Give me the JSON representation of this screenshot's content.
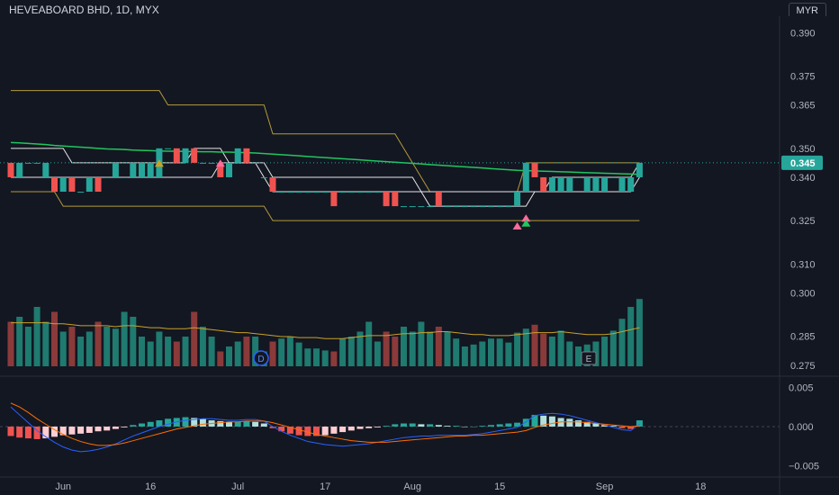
{
  "header": {
    "title": "HEVEABOARD BHD, 1D, MYX",
    "currency": "MYR"
  },
  "colors": {
    "up": "#26a69a",
    "down": "#ef5350",
    "sma": "#22c55e",
    "donchian": "#b59a3a",
    "channel": "#e6e6e6",
    "vol_up": "#1f7a6f",
    "vol_down": "#8b3a3a",
    "vol_ma": "#c9a227",
    "macd": "#2962ff",
    "signal": "#ff6d00",
    "hist_up_strong": "#26a69a",
    "hist_up_weak": "#b2dfdb",
    "hist_down_strong": "#ef5350",
    "hist_down_weak": "#ffcdd2"
  },
  "chart_data": {
    "type": "candlestick",
    "price": {
      "ylim": [
        0.2712,
        0.3957
      ],
      "ticks": [
        "0.390",
        "0.375",
        "0.365",
        "0.350",
        "0.340",
        "0.325",
        "0.310",
        "0.300",
        "0.285",
        "0.275"
      ],
      "last_price": "0.345",
      "candles": [
        {
          "o": 0.345,
          "c": 0.34
        },
        {
          "o": 0.34,
          "c": 0.345
        },
        {
          "o": 0.345,
          "c": 0.345
        },
        {
          "o": 0.345,
          "c": 0.345
        },
        {
          "o": 0.34,
          "c": 0.345
        },
        {
          "o": 0.34,
          "c": 0.335
        },
        {
          "o": 0.335,
          "c": 0.34
        },
        {
          "o": 0.34,
          "c": 0.335
        },
        {
          "o": 0.335,
          "c": 0.335
        },
        {
          "o": 0.335,
          "c": 0.34
        },
        {
          "o": 0.34,
          "c": 0.335
        },
        {
          "o": 0.34,
          "c": 0.34
        },
        {
          "o": 0.34,
          "c": 0.345
        },
        {
          "o": 0.34,
          "c": 0.34
        },
        {
          "o": 0.34,
          "c": 0.345
        },
        {
          "o": 0.34,
          "c": 0.345
        },
        {
          "o": 0.34,
          "c": 0.345
        },
        {
          "o": 0.34,
          "c": 0.35
        },
        {
          "o": 0.35,
          "c": 0.35
        },
        {
          "o": 0.35,
          "c": 0.345
        },
        {
          "o": 0.345,
          "c": 0.35
        },
        {
          "o": 0.35,
          "c": 0.345
        },
        {
          "o": 0.345,
          "c": 0.345
        },
        {
          "o": 0.345,
          "c": 0.345
        },
        {
          "o": 0.345,
          "c": 0.34
        },
        {
          "o": 0.34,
          "c": 0.345
        },
        {
          "o": 0.345,
          "c": 0.35
        },
        {
          "o": 0.35,
          "c": 0.345
        },
        {
          "o": 0.345,
          "c": 0.345
        },
        {
          "o": 0.34,
          "c": 0.34
        },
        {
          "o": 0.34,
          "c": 0.335
        },
        {
          "o": 0.335,
          "c": 0.335
        },
        {
          "o": 0.335,
          "c": 0.335
        },
        {
          "o": 0.335,
          "c": 0.335
        },
        {
          "o": 0.335,
          "c": 0.335
        },
        {
          "o": 0.335,
          "c": 0.335
        },
        {
          "o": 0.335,
          "c": 0.335
        },
        {
          "o": 0.335,
          "c": 0.33
        },
        {
          "o": 0.335,
          "c": 0.335
        },
        {
          "o": 0.335,
          "c": 0.335
        },
        {
          "o": 0.335,
          "c": 0.335
        },
        {
          "o": 0.335,
          "c": 0.335
        },
        {
          "o": 0.335,
          "c": 0.335
        },
        {
          "o": 0.335,
          "c": 0.33
        },
        {
          "o": 0.335,
          "c": 0.33
        },
        {
          "o": 0.33,
          "c": 0.33
        },
        {
          "o": 0.33,
          "c": 0.33
        },
        {
          "o": 0.33,
          "c": 0.33
        },
        {
          "o": 0.33,
          "c": 0.33
        },
        {
          "o": 0.335,
          "c": 0.33
        },
        {
          "o": 0.33,
          "c": 0.33
        },
        {
          "o": 0.33,
          "c": 0.33
        },
        {
          "o": 0.33,
          "c": 0.33
        },
        {
          "o": 0.33,
          "c": 0.33
        },
        {
          "o": 0.33,
          "c": 0.33
        },
        {
          "o": 0.33,
          "c": 0.33
        },
        {
          "o": 0.33,
          "c": 0.33
        },
        {
          "o": 0.33,
          "c": 0.33
        },
        {
          "o": 0.33,
          "c": 0.335
        },
        {
          "o": 0.335,
          "c": 0.345
        },
        {
          "o": 0.345,
          "c": 0.34
        },
        {
          "o": 0.34,
          "c": 0.335
        },
        {
          "o": 0.335,
          "c": 0.34
        },
        {
          "o": 0.335,
          "c": 0.34
        },
        {
          "o": 0.335,
          "c": 0.34
        },
        {
          "o": 0.34,
          "c": 0.34
        },
        {
          "o": 0.335,
          "c": 0.34
        },
        {
          "o": 0.335,
          "c": 0.34
        },
        {
          "o": 0.335,
          "c": 0.34
        },
        {
          "o": 0.34,
          "c": 0.34
        },
        {
          "o": 0.335,
          "c": 0.34
        },
        {
          "o": 0.335,
          "c": 0.34
        },
        {
          "o": 0.34,
          "c": 0.345
        }
      ],
      "sma": [
        0.352,
        0.3519,
        0.3517,
        0.3515,
        0.3513,
        0.351,
        0.3508,
        0.3506,
        0.3504,
        0.3502,
        0.35,
        0.3498,
        0.3497,
        0.3496,
        0.3494,
        0.3493,
        0.3492,
        0.3491,
        0.349,
        0.349,
        0.3489,
        0.3489,
        0.3488,
        0.3488,
        0.3487,
        0.3487,
        0.3486,
        0.3485,
        0.3484,
        0.3482,
        0.348,
        0.3478,
        0.3476,
        0.3474,
        0.3472,
        0.347,
        0.3468,
        0.3466,
        0.3464,
        0.3462,
        0.346,
        0.3458,
        0.3456,
        0.3454,
        0.3452,
        0.345,
        0.3448,
        0.3446,
        0.3444,
        0.3442,
        0.344,
        0.3438,
        0.3436,
        0.3434,
        0.3432,
        0.343,
        0.3428,
        0.3426,
        0.3424,
        0.3423,
        0.3422,
        0.3421,
        0.342,
        0.3419,
        0.3418,
        0.3417,
        0.3416,
        0.3415,
        0.3414,
        0.3413,
        0.3412,
        0.3411,
        0.341
      ],
      "don_upper": [
        0.37,
        0.37,
        0.37,
        0.37,
        0.37,
        0.37,
        0.37,
        0.37,
        0.37,
        0.37,
        0.37,
        0.37,
        0.37,
        0.37,
        0.37,
        0.37,
        0.37,
        0.37,
        0.365,
        0.365,
        0.365,
        0.365,
        0.365,
        0.365,
        0.365,
        0.365,
        0.365,
        0.365,
        0.365,
        0.365,
        0.355,
        0.355,
        0.355,
        0.355,
        0.355,
        0.355,
        0.355,
        0.355,
        0.355,
        0.355,
        0.355,
        0.355,
        0.355,
        0.355,
        0.355,
        0.35,
        0.345,
        0.34,
        0.335,
        0.335,
        0.335,
        0.335,
        0.335,
        0.335,
        0.335,
        0.335,
        0.335,
        0.335,
        0.335,
        0.345,
        0.345,
        0.345,
        0.345,
        0.345,
        0.345,
        0.345,
        0.345,
        0.345,
        0.345,
        0.345,
        0.345,
        0.345,
        0.345
      ],
      "don_lower": [
        0.335,
        0.335,
        0.335,
        0.335,
        0.335,
        0.335,
        0.33,
        0.33,
        0.33,
        0.33,
        0.33,
        0.33,
        0.33,
        0.33,
        0.33,
        0.33,
        0.33,
        0.33,
        0.33,
        0.33,
        0.33,
        0.33,
        0.33,
        0.33,
        0.33,
        0.33,
        0.33,
        0.33,
        0.33,
        0.33,
        0.325,
        0.325,
        0.325,
        0.325,
        0.325,
        0.325,
        0.325,
        0.325,
        0.325,
        0.325,
        0.325,
        0.325,
        0.325,
        0.325,
        0.325,
        0.325,
        0.325,
        0.325,
        0.325,
        0.325,
        0.325,
        0.325,
        0.325,
        0.325,
        0.325,
        0.325,
        0.325,
        0.325,
        0.325,
        0.325,
        0.325,
        0.325,
        0.325,
        0.325,
        0.325,
        0.325,
        0.325,
        0.325,
        0.325,
        0.325,
        0.325,
        0.325,
        0.325
      ],
      "ch_upper": [
        0.35,
        0.35,
        0.35,
        0.35,
        0.35,
        0.35,
        0.35,
        0.345,
        0.345,
        0.345,
        0.345,
        0.345,
        0.345,
        0.345,
        0.345,
        0.345,
        0.345,
        0.345,
        0.345,
        0.345,
        0.345,
        0.35,
        0.35,
        0.35,
        0.35,
        0.345,
        0.345,
        0.345,
        0.345,
        0.345,
        0.34,
        0.34,
        0.34,
        0.34,
        0.34,
        0.34,
        0.34,
        0.34,
        0.34,
        0.34,
        0.34,
        0.34,
        0.34,
        0.34,
        0.34,
        0.34,
        0.34,
        0.335,
        0.335,
        0.335,
        0.335,
        0.335,
        0.335,
        0.335,
        0.335,
        0.335,
        0.335,
        0.335,
        0.335,
        0.335,
        0.335,
        0.335,
        0.34,
        0.34,
        0.34,
        0.34,
        0.34,
        0.34,
        0.34,
        0.34,
        0.34,
        0.34,
        0.345
      ],
      "ch_lower": [
        0.34,
        0.34,
        0.34,
        0.34,
        0.34,
        0.34,
        0.34,
        0.34,
        0.34,
        0.34,
        0.34,
        0.34,
        0.34,
        0.34,
        0.34,
        0.34,
        0.34,
        0.34,
        0.34,
        0.34,
        0.34,
        0.34,
        0.34,
        0.34,
        0.345,
        0.345,
        0.345,
        0.345,
        0.345,
        0.34,
        0.335,
        0.335,
        0.335,
        0.335,
        0.335,
        0.335,
        0.335,
        0.335,
        0.335,
        0.335,
        0.335,
        0.335,
        0.335,
        0.335,
        0.335,
        0.335,
        0.335,
        0.335,
        0.33,
        0.33,
        0.33,
        0.33,
        0.33,
        0.33,
        0.33,
        0.33,
        0.33,
        0.33,
        0.33,
        0.33,
        0.335,
        0.335,
        0.335,
        0.335,
        0.335,
        0.335,
        0.335,
        0.335,
        0.335,
        0.335,
        0.335,
        0.335,
        0.34
      ]
    },
    "volume": {
      "values": [
        0.45,
        0.5,
        0.4,
        0.6,
        0.45,
        0.55,
        0.35,
        0.4,
        0.3,
        0.35,
        0.45,
        0.4,
        0.38,
        0.55,
        0.5,
        0.3,
        0.25,
        0.35,
        0.3,
        0.25,
        0.3,
        0.55,
        0.4,
        0.3,
        0.15,
        0.2,
        0.25,
        0.3,
        0.3,
        0.15,
        0.25,
        0.28,
        0.3,
        0.24,
        0.18,
        0.18,
        0.16,
        0.15,
        0.28,
        0.3,
        0.35,
        0.45,
        0.25,
        0.35,
        0.3,
        0.4,
        0.35,
        0.45,
        0.35,
        0.4,
        0.35,
        0.28,
        0.2,
        0.22,
        0.25,
        0.28,
        0.28,
        0.24,
        0.34,
        0.38,
        0.42,
        0.33,
        0.3,
        0.36,
        0.25,
        0.2,
        0.22,
        0.25,
        0.3,
        0.36,
        0.48,
        0.6,
        0.68
      ],
      "ma": [
        0.44,
        0.44,
        0.44,
        0.44,
        0.44,
        0.43,
        0.43,
        0.42,
        0.41,
        0.41,
        0.41,
        0.41,
        0.4,
        0.41,
        0.41,
        0.4,
        0.39,
        0.39,
        0.38,
        0.38,
        0.38,
        0.39,
        0.38,
        0.37,
        0.36,
        0.35,
        0.34,
        0.34,
        0.33,
        0.32,
        0.31,
        0.3,
        0.3,
        0.29,
        0.29,
        0.29,
        0.28,
        0.28,
        0.28,
        0.29,
        0.3,
        0.31,
        0.31,
        0.31,
        0.32,
        0.33,
        0.33,
        0.34,
        0.34,
        0.35,
        0.35,
        0.34,
        0.33,
        0.32,
        0.32,
        0.31,
        0.31,
        0.31,
        0.32,
        0.33,
        0.34,
        0.34,
        0.34,
        0.35,
        0.34,
        0.33,
        0.32,
        0.32,
        0.32,
        0.33,
        0.35,
        0.37,
        0.39
      ],
      "markers": {
        "dividend": "D",
        "earnings": "E"
      }
    },
    "macd": {
      "ticks": [
        "0.005",
        "0.000",
        "−0.005"
      ],
      "ylim": [
        -0.0062,
        0.0062
      ],
      "hist": [
        -0.0012,
        -0.0014,
        -0.0015,
        -0.0016,
        -0.0015,
        -0.0013,
        -0.0011,
        -0.001,
        -0.0009,
        -0.0008,
        -0.0006,
        -0.0005,
        -0.0003,
        -0.0001,
        0.0002,
        0.0004,
        0.0006,
        0.0008,
        0.001,
        0.0011,
        0.0012,
        0.0011,
        0.001,
        0.0008,
        0.0007,
        0.0006,
        0.0006,
        0.0007,
        0.0006,
        0.0004,
        -0.0002,
        -0.0006,
        -0.0009,
        -0.0011,
        -0.0012,
        -0.0012,
        -0.0011,
        -0.0009,
        -0.0007,
        -0.0005,
        -0.0003,
        -0.0002,
        -0.0001,
        0.0001,
        0.0003,
        0.0004,
        0.0004,
        0.0003,
        0.0003,
        0.0002,
        0.0001,
        0.0001,
        0.0,
        0.0,
        0.0001,
        0.0002,
        0.0003,
        0.0004,
        0.0005,
        0.001,
        0.0015,
        0.0014,
        0.0013,
        0.0011,
        0.001,
        0.0008,
        0.0006,
        0.0004,
        0.0002,
        0.0001,
        -0.0002,
        -0.0003,
        0.0008
      ],
      "macd": [
        0.0025,
        0.0015,
        0.0005,
        -0.0005,
        -0.0013,
        -0.002,
        -0.0026,
        -0.003,
        -0.0032,
        -0.0031,
        -0.0029,
        -0.0026,
        -0.0022,
        -0.0017,
        -0.0012,
        -0.0008,
        -0.0004,
        0.0,
        0.0003,
        0.0006,
        0.0008,
        0.0009,
        0.001,
        0.001,
        0.0009,
        0.0008,
        0.0008,
        0.0009,
        0.0009,
        0.0007,
        0.0,
        -0.0006,
        -0.0011,
        -0.0015,
        -0.0019,
        -0.0021,
        -0.0023,
        -0.0024,
        -0.0025,
        -0.0024,
        -0.0023,
        -0.0022,
        -0.002,
        -0.0018,
        -0.0016,
        -0.0014,
        -0.0013,
        -0.0012,
        -0.0012,
        -0.0011,
        -0.0011,
        -0.0011,
        -0.0011,
        -0.001,
        -0.0009,
        -0.0007,
        -0.0005,
        -0.0003,
        -0.0001,
        0.0006,
        0.0014,
        0.0016,
        0.0017,
        0.0016,
        0.0014,
        0.0011,
        0.0008,
        0.0005,
        0.0002,
        -0.0001,
        -0.0004,
        -0.0005,
        0.0003
      ],
      "signal": [
        0.003,
        0.0025,
        0.0018,
        0.001,
        0.0003,
        -0.0004,
        -0.001,
        -0.0015,
        -0.0019,
        -0.0022,
        -0.0024,
        -0.0024,
        -0.0023,
        -0.0021,
        -0.0018,
        -0.0015,
        -0.0012,
        -0.0009,
        -0.0006,
        -0.0003,
        -0.0001,
        0.0001,
        0.0003,
        0.0004,
        0.0005,
        0.0006,
        0.0006,
        0.0007,
        0.0007,
        0.0007,
        0.0005,
        0.0002,
        -0.0001,
        -0.0004,
        -0.0007,
        -0.001,
        -0.0012,
        -0.0014,
        -0.0016,
        -0.0018,
        -0.0019,
        -0.002,
        -0.002,
        -0.002,
        -0.0019,
        -0.0018,
        -0.0017,
        -0.0016,
        -0.0015,
        -0.0014,
        -0.0013,
        -0.0012,
        -0.0012,
        -0.0011,
        -0.0011,
        -0.001,
        -0.0009,
        -0.0008,
        -0.0007,
        -0.0005,
        -0.0001,
        0.0002,
        0.0004,
        0.0006,
        0.0006,
        0.0006,
        0.0005,
        0.0004,
        0.0003,
        0.0002,
        0.0001,
        0.0,
        0.0001
      ]
    },
    "x_labels": [
      {
        "label": "Jun",
        "bar": 6
      },
      {
        "label": "16",
        "bar": 16
      },
      {
        "label": "Jul",
        "bar": 26
      },
      {
        "label": "17",
        "bar": 36
      },
      {
        "label": "Aug",
        "bar": 46
      },
      {
        "label": "15",
        "bar": 56
      },
      {
        "label": "Sep",
        "bar": 68
      },
      {
        "label": "18",
        "bar": 79
      }
    ]
  }
}
